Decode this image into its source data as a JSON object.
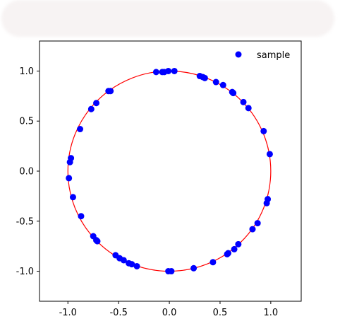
{
  "chart_data": {
    "type": "scatter",
    "title": "",
    "xlabel": "",
    "ylabel": "",
    "xlim": [
      -1.28,
      1.3
    ],
    "ylim": [
      -1.3,
      1.3
    ],
    "xticks": [
      "-1.0",
      "-0.5",
      "0.0",
      "0.5",
      "1.0"
    ],
    "xtick_values": [
      -1.0,
      -0.5,
      0.0,
      0.5,
      1.0
    ],
    "yticks": [
      "1.0",
      "0.5",
      "0.0",
      "-0.5",
      "-1.0"
    ],
    "ytick_values": [
      1.0,
      0.5,
      0.0,
      -0.5,
      -1.0
    ],
    "grid": false,
    "legend_position": "top-right",
    "reference_curve": {
      "shape": "circle",
      "center": [
        0,
        0
      ],
      "radius": 1.0,
      "color": "#ff0000"
    },
    "series": [
      {
        "name": "sample",
        "color": "#0000ff",
        "points": [
          [
            -0.13,
            0.99
          ],
          [
            -0.07,
            0.99
          ],
          [
            -0.05,
            0.99
          ],
          [
            -0.01,
            1.0
          ],
          [
            0.05,
            1.0
          ],
          [
            0.3,
            0.95
          ],
          [
            0.33,
            0.94
          ],
          [
            0.35,
            0.93
          ],
          [
            0.46,
            0.89
          ],
          [
            0.53,
            0.86
          ],
          [
            0.62,
            0.79
          ],
          [
            0.63,
            0.78
          ],
          [
            0.73,
            0.69
          ],
          [
            0.78,
            0.63
          ],
          [
            0.93,
            0.4
          ],
          [
            0.99,
            0.17
          ],
          [
            0.97,
            -0.28
          ],
          [
            0.96,
            -0.32
          ],
          [
            0.87,
            -0.52
          ],
          [
            0.82,
            -0.58
          ],
          [
            0.68,
            -0.73
          ],
          [
            0.64,
            -0.78
          ],
          [
            0.58,
            -0.82
          ],
          [
            0.57,
            -0.83
          ],
          [
            0.43,
            -0.91
          ],
          [
            0.24,
            -0.97
          ],
          [
            0.02,
            -1.0
          ],
          [
            -0.01,
            -1.0
          ],
          [
            -0.32,
            -0.95
          ],
          [
            -0.37,
            -0.93
          ],
          [
            -0.4,
            -0.92
          ],
          [
            -0.45,
            -0.89
          ],
          [
            -0.49,
            -0.87
          ],
          [
            -0.53,
            -0.84
          ],
          [
            -0.71,
            -0.7
          ],
          [
            -0.72,
            -0.69
          ],
          [
            -0.75,
            -0.65
          ],
          [
            -0.87,
            -0.45
          ],
          [
            -0.95,
            -0.26
          ],
          [
            -0.99,
            -0.07
          ],
          [
            -0.98,
            0.09
          ],
          [
            -0.97,
            0.13
          ],
          [
            -0.88,
            0.42
          ],
          [
            -0.72,
            0.68
          ],
          [
            -0.77,
            0.62
          ],
          [
            -0.58,
            0.8
          ],
          [
            -0.6,
            0.8
          ]
        ]
      }
    ]
  }
}
